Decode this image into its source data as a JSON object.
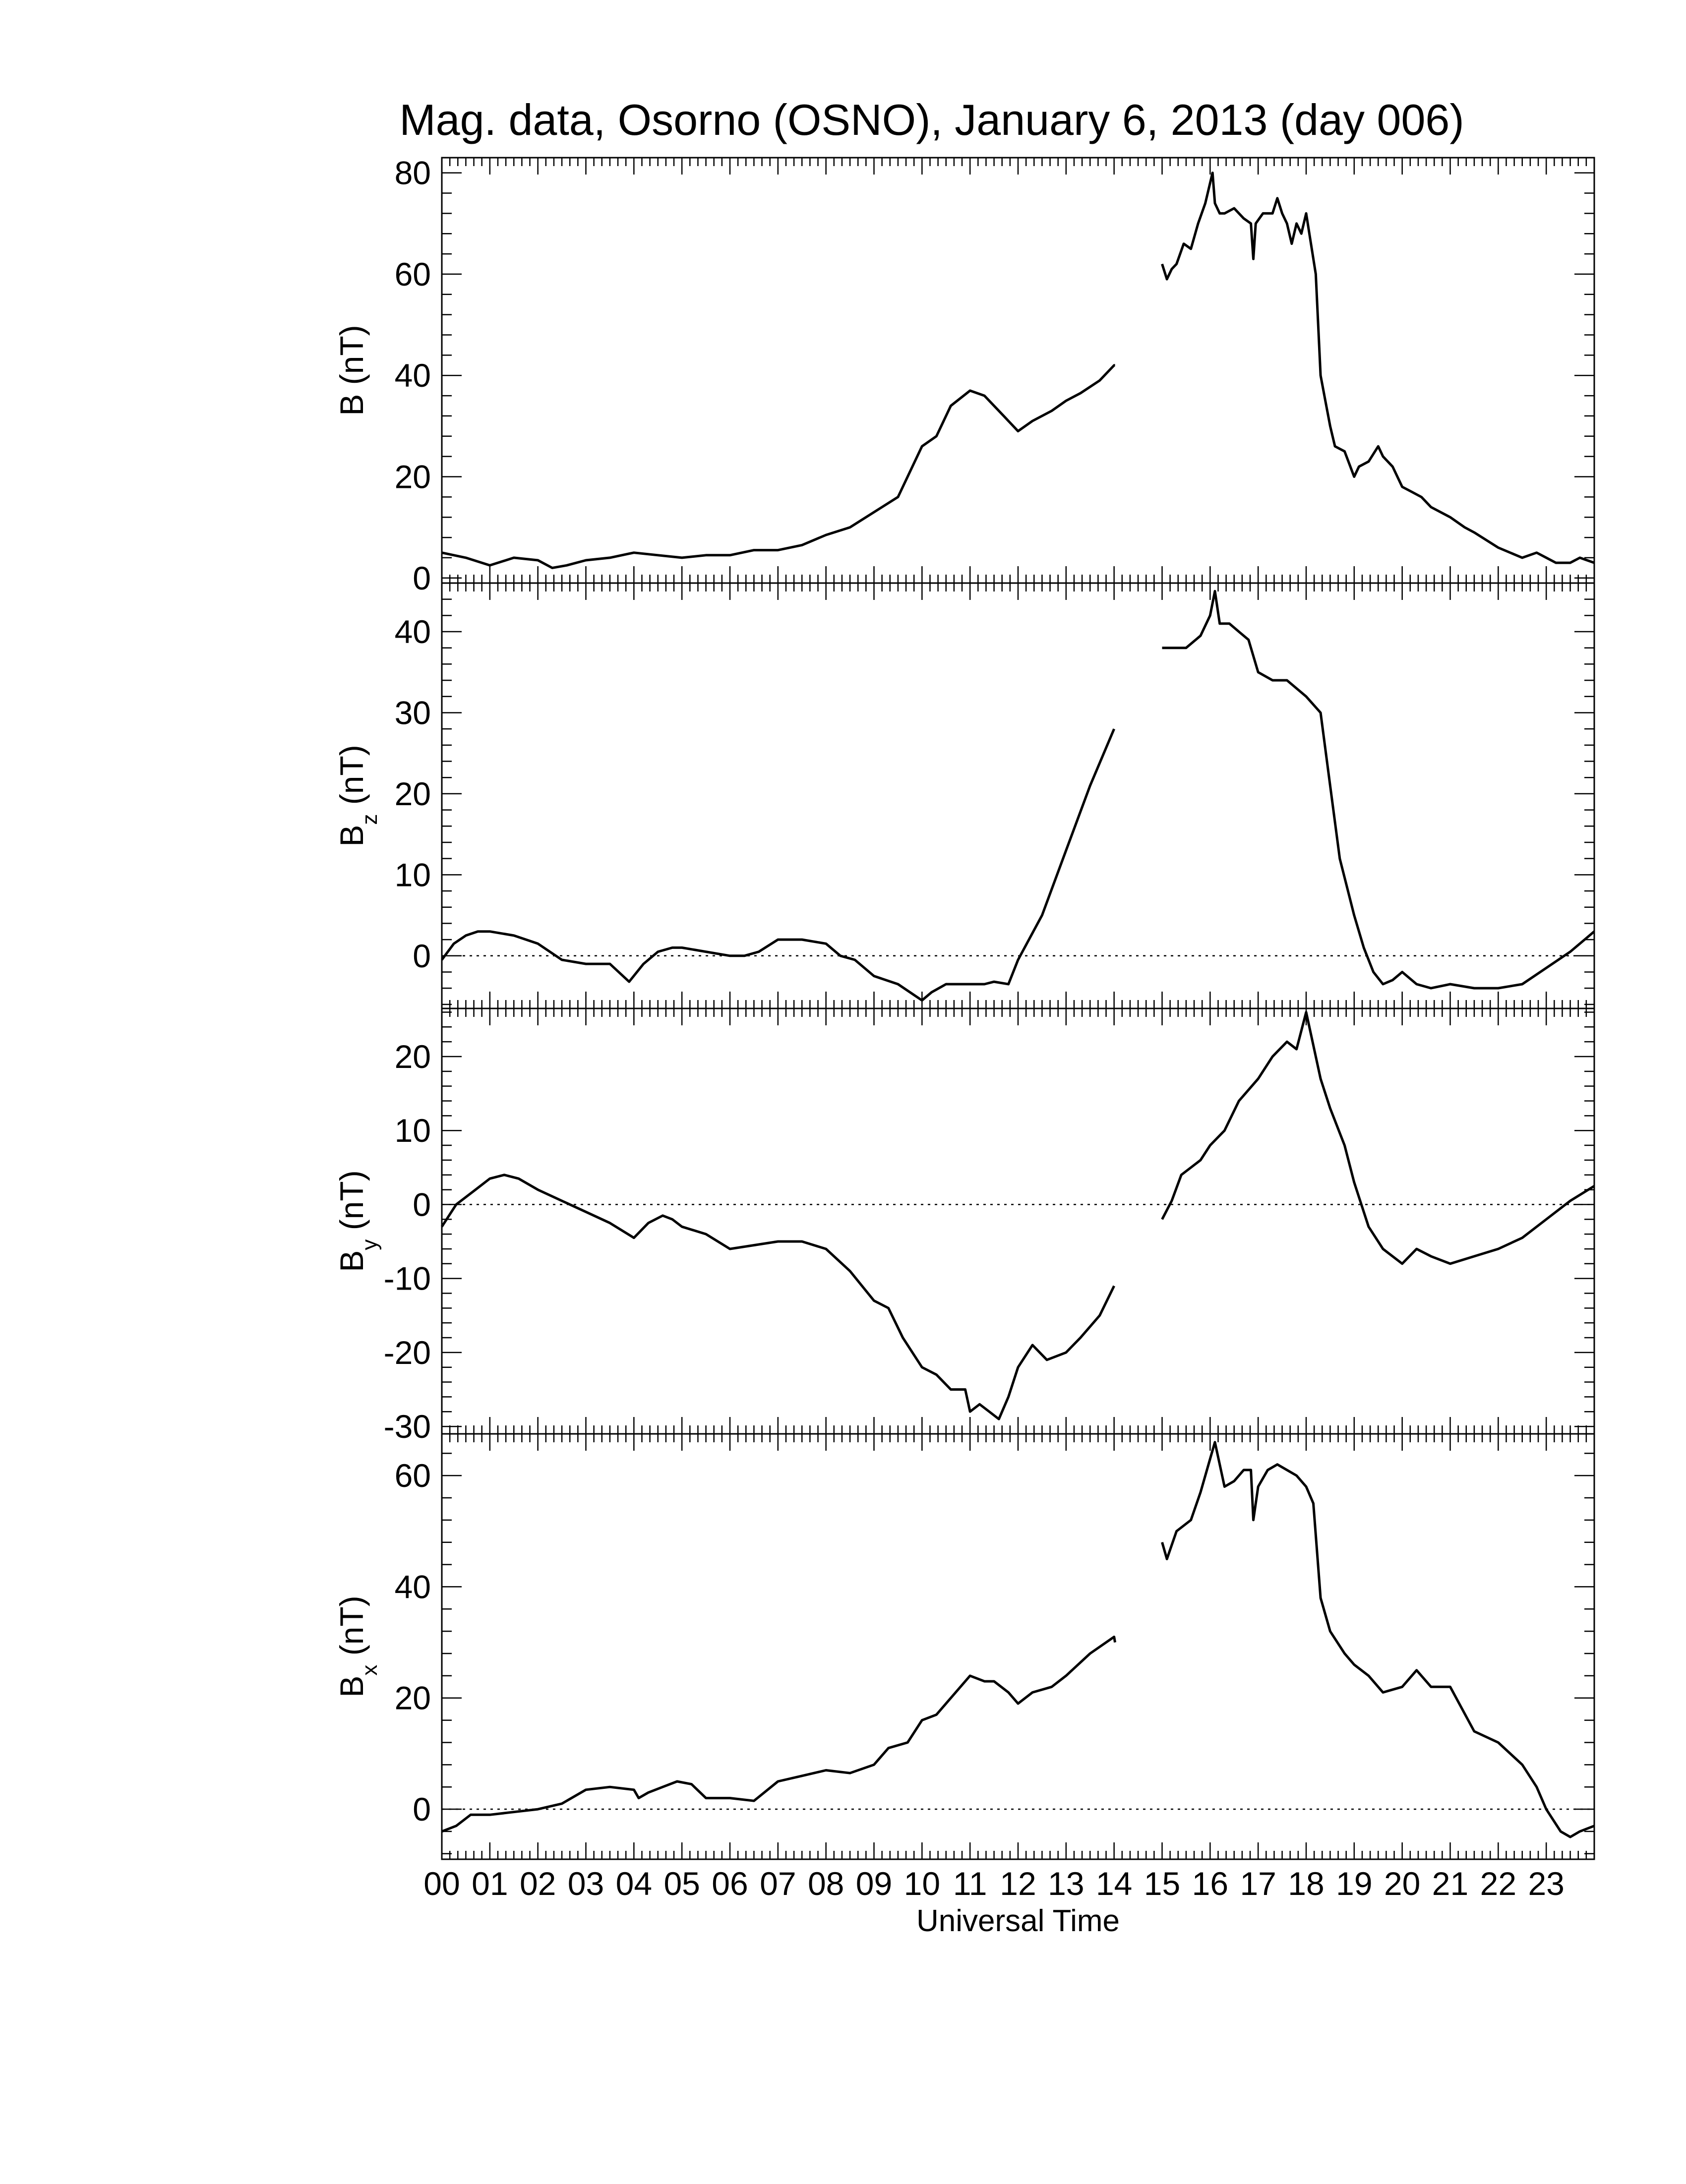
{
  "chart_data": {
    "title": "Mag. data, Osorno (OSNO), January 6, 2013 (day 006)",
    "xlabel": "Universal Time",
    "x_tick_labels": [
      "00",
      "01",
      "02",
      "03",
      "04",
      "05",
      "06",
      "07",
      "08",
      "09",
      "10",
      "11",
      "12",
      "13",
      "14",
      "15",
      "16",
      "17",
      "18",
      "19",
      "20",
      "21",
      "22",
      "23"
    ],
    "xlim": [
      0,
      24
    ],
    "data_gap_hours": [
      14.0,
      15.0
    ],
    "line_color": "#000000",
    "panels": [
      {
        "id": "B",
        "type": "line",
        "ylabel": "B (nT)",
        "ylabel_main": "B (nT)",
        "ylabel_sub": "",
        "ylim": [
          -1,
          83
        ],
        "yticks": [
          0,
          20,
          40,
          60,
          80
        ],
        "ytick_labels": [
          "0",
          "20",
          "40",
          "60",
          "80"
        ],
        "zero_line": false,
        "series": [
          {
            "x": [
              0,
              0.5,
              1,
              1.5,
              2,
              2.3,
              2.6,
              3,
              3.5,
              4,
              4.5,
              5,
              5.5,
              6,
              6.5,
              7,
              7.5,
              8,
              8.5,
              9,
              9.5,
              10,
              10.3,
              10.6,
              11,
              11.3,
              11.5,
              11.7,
              12,
              12.3,
              12.7,
              13,
              13.3,
              13.7,
              14,
              14.02,
              15,
              15.1,
              15.2,
              15.3,
              15.45,
              15.6,
              15.75,
              15.9,
              16,
              16.05,
              16.1,
              16.2,
              16.3,
              16.5,
              16.7,
              16.85,
              16.9,
              16.95,
              17.1,
              17.3,
              17.4,
              17.5,
              17.6,
              17.7,
              17.8,
              17.9,
              18,
              18.1,
              18.2,
              18.3,
              18.4,
              18.5,
              18.6,
              18.8,
              19,
              19.1,
              19.3,
              19.5,
              19.6,
              19.7,
              19.8,
              20,
              20.2,
              20.4,
              20.6,
              21,
              21.3,
              21.5,
              22,
              22.5,
              22.8,
              23,
              23.2,
              23.5,
              23.7,
              24
            ],
            "y": [
              5,
              4,
              2.5,
              4,
              3.5,
              2,
              2.5,
              3.5,
              4,
              5,
              4.5,
              4,
              4.5,
              4.5,
              5.5,
              5.5,
              6.5,
              8.5,
              10,
              13,
              16,
              26,
              28,
              34,
              37,
              36,
              34,
              32,
              29,
              31,
              33,
              35,
              36.5,
              39,
              42,
              42,
              62,
              59,
              61,
              62,
              66,
              65,
              70,
              74,
              78,
              80,
              74,
              72,
              72,
              73,
              71,
              70,
              63,
              70,
              72,
              72,
              75,
              72,
              70,
              66,
              70,
              68,
              72,
              66,
              60,
              40,
              35,
              30,
              26,
              25,
              20,
              22,
              23,
              26,
              24,
              23,
              22,
              18,
              17,
              16,
              14,
              12,
              10,
              9,
              6,
              4,
              5,
              4,
              3,
              3,
              4,
              3
            ]
          }
        ]
      },
      {
        "id": "Bz",
        "type": "line",
        "ylabel": "Bz (nT)",
        "ylabel_main": "B",
        "ylabel_sub": "z",
        "ylabel_unit": " (nT)",
        "ylim": [
          -6.5,
          46
        ],
        "yticks": [
          0,
          10,
          20,
          30,
          40
        ],
        "ytick_labels": [
          "0",
          "10",
          "20",
          "30",
          "40"
        ],
        "zero_line": true,
        "series": [
          {
            "x": [
              0,
              0.25,
              0.5,
              0.75,
              1,
              1.5,
              2,
              2.5,
              3,
              3.5,
              3.9,
              4.2,
              4.5,
              4.8,
              5,
              5.5,
              6,
              6.3,
              6.6,
              7,
              7.5,
              8,
              8.3,
              8.6,
              9,
              9.5,
              10,
              10.2,
              10.5,
              11,
              11.3,
              11.5,
              11.8,
              12,
              12.5,
              13,
              13.5,
              14,
              15,
              15.2,
              15.5,
              15.8,
              16,
              16.1,
              16.2,
              16.4,
              16.6,
              16.8,
              17,
              17.3,
              17.6,
              18,
              18.3,
              18.5,
              18.7,
              19,
              19.2,
              19.4,
              19.6,
              19.8,
              20,
              20.3,
              20.6,
              21,
              21.5,
              22,
              22.5,
              23,
              23.5,
              23.8,
              24
            ],
            "y": [
              -0.5,
              1.5,
              2.5,
              3,
              3,
              2.5,
              1.5,
              -0.5,
              -1,
              -1,
              -3.2,
              -1,
              0.5,
              1,
              1,
              0.5,
              0,
              0,
              0.5,
              2,
              2,
              1.5,
              0,
              -0.5,
              -2.5,
              -3.5,
              -5.5,
              -4.5,
              -3.5,
              -3.5,
              -3.5,
              -3.2,
              -3.5,
              -0.5,
              5,
              13,
              21,
              28,
              38,
              38,
              38,
              39.5,
              42,
              45,
              41,
              41,
              40,
              39,
              35,
              34,
              34,
              32,
              30,
              21,
              12,
              5,
              1,
              -2,
              -3.5,
              -3,
              -2,
              -3.5,
              -4,
              -3.5,
              -4,
              -4,
              -3.5,
              -1.5,
              0.5,
              2,
              3
            ]
          }
        ]
      },
      {
        "id": "By",
        "type": "line",
        "ylabel": "By (nT)",
        "ylabel_main": "B",
        "ylabel_sub": "y",
        "ylabel_unit": " (nT)",
        "ylim": [
          -31,
          26.5
        ],
        "yticks": [
          -30,
          -20,
          -10,
          0,
          10,
          20
        ],
        "ytick_labels": [
          "-30",
          "-20",
          "-10",
          "0",
          "10",
          "20"
        ],
        "zero_line": true,
        "series": [
          {
            "x": [
              0,
              0.3,
              0.7,
              1,
              1.3,
              1.6,
              2,
              2.5,
              3,
              3.5,
              4,
              4.3,
              4.6,
              4.8,
              5,
              5.5,
              6,
              6.5,
              7,
              7.5,
              8,
              8.5,
              9,
              9.3,
              9.6,
              10,
              10.3,
              10.6,
              10.9,
              11,
              11.2,
              11.4,
              11.6,
              11.8,
              12,
              12.3,
              12.6,
              13,
              13.3,
              13.7,
              14,
              15,
              15.2,
              15.4,
              15.6,
              15.8,
              16,
              16.3,
              16.6,
              17,
              17.3,
              17.6,
              17.8,
              18,
              18.1,
              18.2,
              18.3,
              18.5,
              18.8,
              19,
              19.3,
              19.6,
              20,
              20.3,
              20.6,
              21,
              21.5,
              22,
              22.5,
              23,
              23.5,
              24
            ],
            "y": [
              -3,
              0,
              2,
              3.5,
              4,
              3.5,
              2,
              0.5,
              -1,
              -2.5,
              -4.5,
              -2.5,
              -1.5,
              -2,
              -3,
              -4,
              -6,
              -5.5,
              -5,
              -5,
              -6,
              -9,
              -13,
              -14,
              -18,
              -22,
              -23,
              -25,
              -25,
              -28,
              -27,
              -28,
              -29,
              -26,
              -22,
              -19,
              -21,
              -20,
              -18,
              -15,
              -11,
              -2,
              0.5,
              4,
              5,
              6,
              8,
              10,
              14,
              17,
              20,
              22,
              21,
              26,
              23,
              20,
              17,
              13,
              8,
              3,
              -3,
              -6,
              -8,
              -6,
              -7,
              -8,
              -7,
              -6,
              -4.5,
              -2,
              0.5,
              2.5
            ]
          }
        ]
      },
      {
        "id": "Bx",
        "type": "line",
        "ylabel": "Bx (nT)",
        "ylabel_main": "B",
        "ylabel_sub": "x",
        "ylabel_unit": " (nT)",
        "ylim": [
          -9,
          67.5
        ],
        "yticks": [
          0,
          20,
          40,
          60
        ],
        "ytick_labels": [
          "0",
          "20",
          "40",
          "60"
        ],
        "zero_line": true,
        "series": [
          {
            "x": [
              0,
              0.3,
              0.6,
              1,
              1.5,
              2,
              2.5,
              3,
              3.5,
              4,
              4.1,
              4.3,
              4.6,
              4.9,
              5.2,
              5.5,
              6,
              6.5,
              7,
              7.5,
              8,
              8.5,
              9,
              9.3,
              9.7,
              10,
              10.3,
              10.6,
              11,
              11.3,
              11.5,
              11.8,
              12,
              12.3,
              12.7,
              13,
              13.5,
              14,
              14.02,
              15,
              15.1,
              15.3,
              15.6,
              15.8,
              16,
              16.1,
              16.3,
              16.5,
              16.7,
              16.85,
              16.9,
              17,
              17.2,
              17.4,
              17.6,
              17.8,
              18,
              18.15,
              18.3,
              18.5,
              18.8,
              19,
              19.3,
              19.6,
              20,
              20.3,
              20.6,
              21,
              21.5,
              22,
              22.5,
              22.8,
              23,
              23.3,
              23.5,
              23.7,
              24
            ],
            "y": [
              -4,
              -3,
              -1,
              -1,
              -0.5,
              0,
              1,
              3.5,
              4,
              3.5,
              2,
              3,
              4,
              5,
              4.5,
              2,
              2,
              1.5,
              5,
              6,
              7,
              6.5,
              8,
              11,
              12,
              16,
              17,
              20,
              24,
              23,
              23,
              21,
              19,
              21,
              22,
              24,
              28,
              31,
              30,
              48,
              45,
              50,
              52,
              57,
              63,
              66,
              58,
              59,
              61,
              61,
              52,
              58,
              61,
              62,
              61,
              60,
              58,
              55,
              38,
              32,
              28,
              26,
              24,
              21,
              22,
              25,
              22,
              22,
              14,
              12,
              8,
              4,
              0,
              -4,
              -5,
              -4,
              -3
            ]
          }
        ]
      }
    ]
  }
}
